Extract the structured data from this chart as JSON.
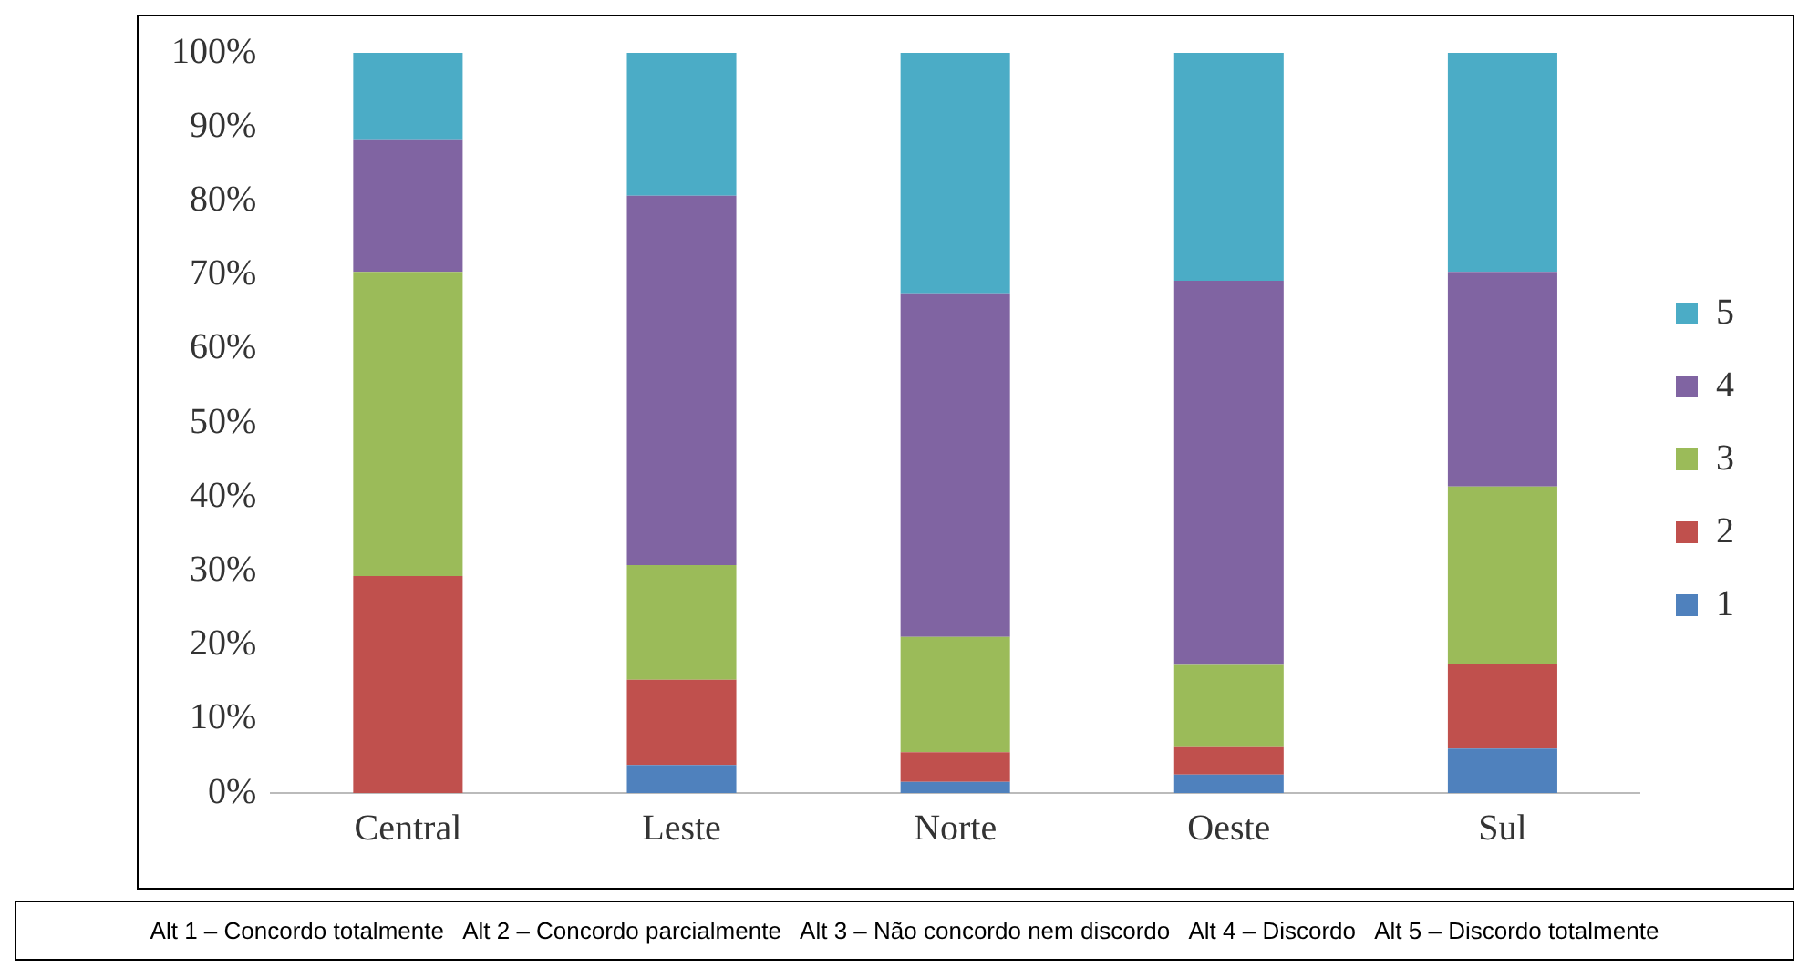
{
  "chart_data": {
    "type": "bar",
    "stacked": true,
    "categories": [
      "Central",
      "Leste",
      "Norte",
      "Oeste",
      "Sul"
    ],
    "series": [
      {
        "name": "1",
        "color": "#4f81bd",
        "values": [
          0,
          3.8,
          1.5,
          2.5,
          6.0
        ]
      },
      {
        "name": "2",
        "color": "#c0504d",
        "values": [
          29.3,
          11.5,
          4.0,
          3.8,
          11.5
        ]
      },
      {
        "name": "3",
        "color": "#9bbb59",
        "values": [
          41.1,
          15.5,
          15.6,
          11.0,
          23.9
        ]
      },
      {
        "name": "4",
        "color": "#8064a2",
        "values": [
          17.8,
          49.9,
          46.3,
          51.9,
          29.0
        ]
      },
      {
        "name": "5",
        "color": "#4bacc6",
        "values": [
          11.8,
          19.3,
          32.6,
          30.8,
          29.6
        ]
      }
    ],
    "ylim": [
      0,
      100
    ],
    "yticks": [
      {
        "value": 0,
        "label": "0%"
      },
      {
        "value": 10,
        "label": "10%"
      },
      {
        "value": 20,
        "label": "20%"
      },
      {
        "value": 30,
        "label": "30%"
      },
      {
        "value": 40,
        "label": "40%"
      },
      {
        "value": 50,
        "label": "50%"
      },
      {
        "value": 60,
        "label": "60%"
      },
      {
        "value": 70,
        "label": "70%"
      },
      {
        "value": 80,
        "label": "80%"
      },
      {
        "value": 90,
        "label": "90%"
      },
      {
        "value": 100,
        "label": "100%"
      }
    ],
    "grid": false,
    "legend": "right",
    "annotations": [
      "Alt 1 – Concordo totalmente   Alt 2 – Concordo parcialmente   Alt 3 – Não concordo nem discordo   Alt 4 – Discordo   Alt 5 – Discordo totalmente"
    ]
  }
}
